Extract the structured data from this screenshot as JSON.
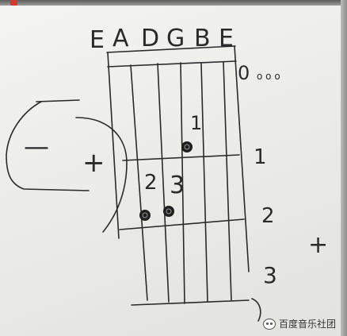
{
  "diagram": {
    "strings": [
      "E",
      "A",
      "D",
      "G",
      "B",
      "E"
    ],
    "fret_labels": [
      "0",
      "1",
      "2",
      "3"
    ],
    "open_marks": "o o o",
    "finger_labels": [
      "1",
      "2",
      "3"
    ],
    "side_marks": {
      "minus": "—",
      "plus_left": "+",
      "plus_right": "+"
    }
  },
  "watermark": {
    "text": "百度音乐社团"
  },
  "colors": {
    "ink": "#2a2a2a",
    "board": "#eeeeeb"
  }
}
